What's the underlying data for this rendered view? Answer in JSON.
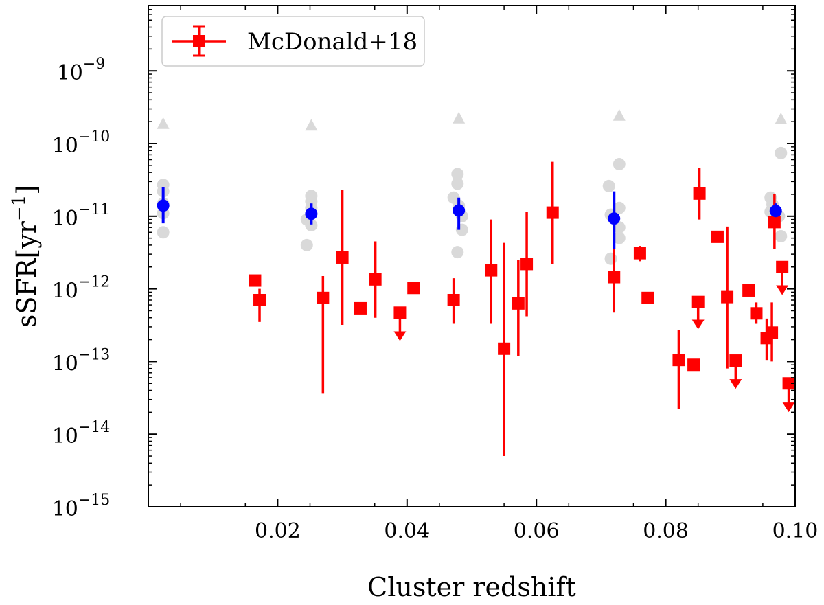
{
  "chart_data": {
    "type": "scatter",
    "xlabel": "Cluster redshift",
    "ylabel_main": "sSFR",
    "ylabel_units": "[yr",
    "ylabel_exp": "−1",
    "ylabel_close": "]",
    "xlim": [
      0.0,
      0.1
    ],
    "ylim_log10": [
      -15,
      -8.1
    ],
    "yscale": "log",
    "xticks": [
      0.02,
      0.04,
      0.06,
      0.08,
      0.1
    ],
    "xtick_labels": [
      "0.02",
      "0.04",
      "0.06",
      "0.08",
      "0.10"
    ],
    "yticks_exp": [
      -15,
      -14,
      -13,
      -12,
      -11,
      -10,
      -9
    ],
    "ytick_base": "10",
    "ytick_exp_labels": [
      "−15",
      "−14",
      "−13",
      "−12",
      "−11",
      "−10",
      "−9"
    ],
    "legend": {
      "placement": "top-left",
      "label": "McDonald+18"
    },
    "colors": {
      "mcdonald": "#ff0000",
      "median": "#0000ff",
      "gray": "#d9d9d9"
    },
    "series": [
      {
        "name": "McDonald+18",
        "marker": "square",
        "points": [
          {
            "x": 0.0165,
            "y": 1.3e-12
          },
          {
            "x": 0.0172,
            "y": 7e-13,
            "lo": 3.5e-13,
            "hi": 1e-12
          },
          {
            "x": 0.027,
            "y": 7.5e-13,
            "lo": 3.6e-14,
            "hi": 1.5e-12
          },
          {
            "x": 0.03,
            "y": 2.7e-12,
            "lo": 3.2e-13,
            "hi": 2.3e-11
          },
          {
            "x": 0.0328,
            "y": 5.4e-13
          },
          {
            "x": 0.0351,
            "y": 1.35e-12,
            "lo": 4e-13,
            "hi": 4.5e-12
          },
          {
            "x": 0.0389,
            "y": 4.7e-13,
            "upper_limit": true,
            "arrow_to": 2e-13
          },
          {
            "x": 0.041,
            "y": 1.03e-12
          },
          {
            "x": 0.0472,
            "y": 7e-13,
            "lo": 3.3e-13,
            "hi": 1.4e-12
          },
          {
            "x": 0.053,
            "y": 1.8e-12,
            "lo": 3.3e-13,
            "hi": 9e-12
          },
          {
            "x": 0.055,
            "y": 1.5e-13,
            "lo": 5e-15,
            "hi": 4.3e-12
          },
          {
            "x": 0.0572,
            "y": 6.3e-13,
            "lo": 1.2e-13,
            "hi": 2.5e-12
          },
          {
            "x": 0.0585,
            "y": 2.2e-12,
            "lo": 4.2e-13,
            "hi": 1.15e-11
          },
          {
            "x": 0.0625,
            "y": 1.12e-11,
            "lo": 2.2e-12,
            "hi": 5.6e-11
          },
          {
            "x": 0.072,
            "y": 1.45e-12,
            "lo": 4.7e-13,
            "hi": 4e-12
          },
          {
            "x": 0.076,
            "y": 3.1e-12,
            "lo": 2.4e-12,
            "hi": 3.9e-12
          },
          {
            "x": 0.0772,
            "y": 7.5e-13
          },
          {
            "x": 0.082,
            "y": 1.05e-13,
            "lo": 2.2e-14,
            "hi": 2.7e-13
          },
          {
            "x": 0.0843,
            "y": 9e-14,
            "lo": 7.5e-14,
            "hi": 1.05e-13
          },
          {
            "x": 0.085,
            "y": 6.6e-13,
            "upper_limit": true,
            "arrow_to": 2.9e-13
          },
          {
            "x": 0.0852,
            "y": 2.05e-11,
            "lo": 9e-12,
            "hi": 4.6e-11
          },
          {
            "x": 0.088,
            "y": 5.2e-12
          },
          {
            "x": 0.0895,
            "y": 7.7e-13,
            "lo": 8e-14,
            "hi": 7.2e-12
          },
          {
            "x": 0.0908,
            "y": 1.03e-13,
            "upper_limit": true,
            "arrow_to": 4.4e-14
          },
          {
            "x": 0.0928,
            "y": 9.5e-13
          },
          {
            "x": 0.094,
            "y": 4.6e-13,
            "lo": 3.3e-13,
            "hi": 6.5e-13
          },
          {
            "x": 0.0956,
            "y": 2.1e-13,
            "lo": 1.05e-13,
            "hi": 3.9e-13
          },
          {
            "x": 0.0964,
            "y": 2.5e-13,
            "lo": 1e-13,
            "hi": 6.5e-13
          },
          {
            "x": 0.0968,
            "y": 8.3e-12,
            "lo": 3.5e-12,
            "hi": 2e-11
          },
          {
            "x": 0.098,
            "y": 2e-12,
            "upper_limit": true,
            "arrow_to": 8.6e-13
          },
          {
            "x": 0.099,
            "y": 5e-14,
            "upper_limit": true,
            "arrow_to": 2.1e-14
          }
        ]
      },
      {
        "marker": "circle",
        "points": [
          {
            "x": 0.0023,
            "y": 1.4e-11,
            "lo": 8e-12,
            "hi": 2.5e-11
          },
          {
            "x": 0.0252,
            "y": 1.08e-11,
            "lo": 7.7e-12,
            "hi": 1.5e-11
          },
          {
            "x": 0.048,
            "y": 1.2e-11,
            "lo": 6.5e-12,
            "hi": 1.8e-11
          },
          {
            "x": 0.072,
            "y": 9.3e-12,
            "lo": 3.5e-12,
            "hi": 2.2e-11
          },
          {
            "x": 0.097,
            "y": 1.18e-11,
            "lo": 8.3e-12,
            "hi": 1.5e-11
          }
        ]
      },
      {
        "marker": "gray-circle",
        "points": [
          {
            "x": 0.0023,
            "y": 2.7e-11
          },
          {
            "x": 0.0023,
            "y": 2.2e-11
          },
          {
            "x": 0.0023,
            "y": 1.5e-11
          },
          {
            "x": 0.0023,
            "y": 1.1e-11
          },
          {
            "x": 0.0023,
            "y": 6e-12
          },
          {
            "x": 0.0252,
            "y": 1.9e-11
          },
          {
            "x": 0.0252,
            "y": 1.6e-11
          },
          {
            "x": 0.0252,
            "y": 1.3e-11
          },
          {
            "x": 0.0245,
            "y": 9e-12
          },
          {
            "x": 0.0252,
            "y": 7.5e-12
          },
          {
            "x": 0.0245,
            "y": 4e-12
          },
          {
            "x": 0.0478,
            "y": 3.8e-11
          },
          {
            "x": 0.0478,
            "y": 2.8e-11
          },
          {
            "x": 0.0472,
            "y": 1.8e-11
          },
          {
            "x": 0.048,
            "y": 1.4e-11
          },
          {
            "x": 0.0485,
            "y": 1e-11
          },
          {
            "x": 0.0485,
            "y": 6.5e-12
          },
          {
            "x": 0.0478,
            "y": 3.2e-12
          },
          {
            "x": 0.0728,
            "y": 5.2e-11
          },
          {
            "x": 0.0712,
            "y": 2.6e-11
          },
          {
            "x": 0.0728,
            "y": 1.3e-11
          },
          {
            "x": 0.0715,
            "y": 1.05e-11
          },
          {
            "x": 0.0728,
            "y": 7e-12
          },
          {
            "x": 0.0728,
            "y": 5e-12
          },
          {
            "x": 0.0715,
            "y": 2.6e-12
          },
          {
            "x": 0.0978,
            "y": 7.4e-11
          },
          {
            "x": 0.0962,
            "y": 1.8e-11
          },
          {
            "x": 0.0965,
            "y": 1.45e-11
          },
          {
            "x": 0.0962,
            "y": 1.15e-11
          },
          {
            "x": 0.0975,
            "y": 1e-11
          },
          {
            "x": 0.0978,
            "y": 5.3e-12
          }
        ]
      },
      {
        "marker": "gray-triangle",
        "points": [
          {
            "x": 0.0023,
            "y": 1.85e-10
          },
          {
            "x": 0.0252,
            "y": 1.75e-10
          },
          {
            "x": 0.048,
            "y": 2.2e-10
          },
          {
            "x": 0.0728,
            "y": 2.4e-10
          },
          {
            "x": 0.0978,
            "y": 2.15e-10
          }
        ]
      }
    ]
  }
}
